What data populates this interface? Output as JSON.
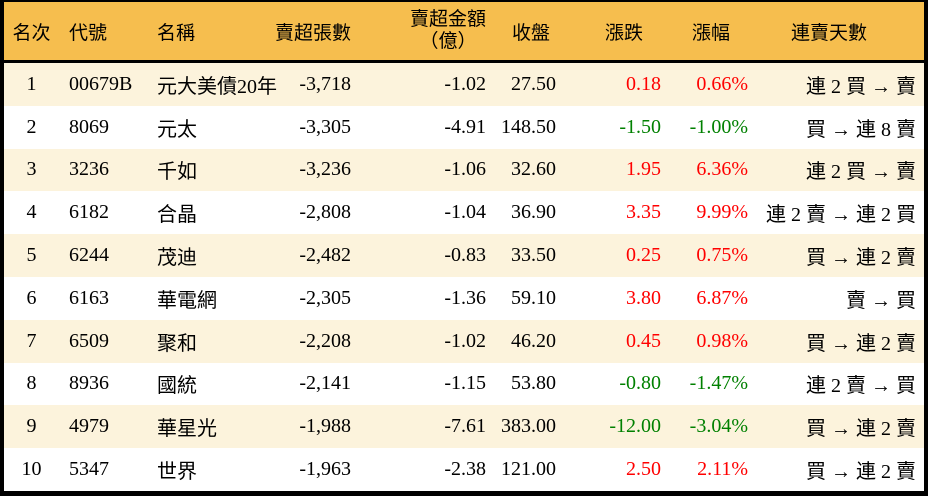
{
  "colors": {
    "header_bg": "#F6BE4E",
    "stripe_bg": "#FCF3DC",
    "row_bg": "#FFFFFF",
    "border": "#000000",
    "up": "#FF0000",
    "down": "#008000",
    "text": "#000000"
  },
  "table": {
    "header": {
      "rank": "名次",
      "code": "代號",
      "name": "名稱",
      "shares": "賣超張數",
      "amount_line1": "賣超金額",
      "amount_line2": "（億）",
      "close": "收盤",
      "change": "漲跌",
      "pct": "漲幅",
      "streak": "連賣天數"
    },
    "rows": [
      {
        "rank": "1",
        "code": "00679B",
        "name": "元大美債20年",
        "shares": "-3,718",
        "amount": "-1.02",
        "close": "27.50",
        "change": "0.18",
        "pct": "0.66%",
        "streak": "連 2 買 → 賣",
        "trend": "up"
      },
      {
        "rank": "2",
        "code": "8069",
        "name": "元太",
        "shares": "-3,305",
        "amount": "-4.91",
        "close": "148.50",
        "change": "-1.50",
        "pct": "-1.00%",
        "streak": "買 → 連 8 賣",
        "trend": "down"
      },
      {
        "rank": "3",
        "code": "3236",
        "name": "千如",
        "shares": "-3,236",
        "amount": "-1.06",
        "close": "32.60",
        "change": "1.95",
        "pct": "6.36%",
        "streak": "連 2 買 → 賣",
        "trend": "up"
      },
      {
        "rank": "4",
        "code": "6182",
        "name": "合晶",
        "shares": "-2,808",
        "amount": "-1.04",
        "close": "36.90",
        "change": "3.35",
        "pct": "9.99%",
        "streak": "連 2 賣 → 連 2 買",
        "trend": "up"
      },
      {
        "rank": "5",
        "code": "6244",
        "name": "茂迪",
        "shares": "-2,482",
        "amount": "-0.83",
        "close": "33.50",
        "change": "0.25",
        "pct": "0.75%",
        "streak": "買 → 連 2 賣",
        "trend": "up"
      },
      {
        "rank": "6",
        "code": "6163",
        "name": "華電網",
        "shares": "-2,305",
        "amount": "-1.36",
        "close": "59.10",
        "change": "3.80",
        "pct": "6.87%",
        "streak": "賣 → 買",
        "trend": "up"
      },
      {
        "rank": "7",
        "code": "6509",
        "name": "聚和",
        "shares": "-2,208",
        "amount": "-1.02",
        "close": "46.20",
        "change": "0.45",
        "pct": "0.98%",
        "streak": "買 → 連 2 賣",
        "trend": "up"
      },
      {
        "rank": "8",
        "code": "8936",
        "name": "國統",
        "shares": "-2,141",
        "amount": "-1.15",
        "close": "53.80",
        "change": "-0.80",
        "pct": "-1.47%",
        "streak": "連 2 賣 → 買",
        "trend": "down"
      },
      {
        "rank": "9",
        "code": "4979",
        "name": "華星光",
        "shares": "-1,988",
        "amount": "-7.61",
        "close": "383.00",
        "change": "-12.00",
        "pct": "-3.04%",
        "streak": "買 → 連 2 賣",
        "trend": "down"
      },
      {
        "rank": "10",
        "code": "5347",
        "name": "世界",
        "shares": "-1,963",
        "amount": "-2.38",
        "close": "121.00",
        "change": "2.50",
        "pct": "2.11%",
        "streak": "買 → 連 2 賣",
        "trend": "up"
      }
    ]
  },
  "chart_data": {
    "type": "table",
    "title": "",
    "columns": [
      "名次",
      "代號",
      "名稱",
      "賣超張數",
      "賣超金額（億）",
      "收盤",
      "漲跌",
      "漲幅",
      "連賣天數"
    ],
    "rows": [
      [
        1,
        "00679B",
        "元大美債20年",
        -3718,
        -1.02,
        27.5,
        0.18,
        "0.66%",
        "連 2 買 → 賣"
      ],
      [
        2,
        "8069",
        "元太",
        -3305,
        -4.91,
        148.5,
        -1.5,
        "-1.00%",
        "買 → 連 8 賣"
      ],
      [
        3,
        "3236",
        "千如",
        -3236,
        -1.06,
        32.6,
        1.95,
        "6.36%",
        "連 2 買 → 賣"
      ],
      [
        4,
        "6182",
        "合晶",
        -2808,
        -1.04,
        36.9,
        3.35,
        "9.99%",
        "連 2 賣 → 連 2 買"
      ],
      [
        5,
        "6244",
        "茂迪",
        -2482,
        -0.83,
        33.5,
        0.25,
        "0.75%",
        "買 → 連 2 賣"
      ],
      [
        6,
        "6163",
        "華電網",
        -2305,
        -1.36,
        59.1,
        3.8,
        "6.87%",
        "賣 → 買"
      ],
      [
        7,
        "6509",
        "聚和",
        -2208,
        -1.02,
        46.2,
        0.45,
        "0.98%",
        "買 → 連 2 賣"
      ],
      [
        8,
        "8936",
        "國統",
        -2141,
        -1.15,
        53.8,
        -0.8,
        "-1.47%",
        "連 2 賣 → 買"
      ],
      [
        9,
        "4979",
        "華星光",
        -1988,
        -7.61,
        383.0,
        -12.0,
        "-3.04%",
        "買 → 連 2 賣"
      ],
      [
        10,
        "5347",
        "世界",
        -1963,
        -2.38,
        121.0,
        2.5,
        "2.11%",
        "買 → 連 2 賣"
      ]
    ],
    "legend": null,
    "grid": false,
    "notes": "striped data table; positive 漲跌/漲幅 in red, negative in green"
  }
}
